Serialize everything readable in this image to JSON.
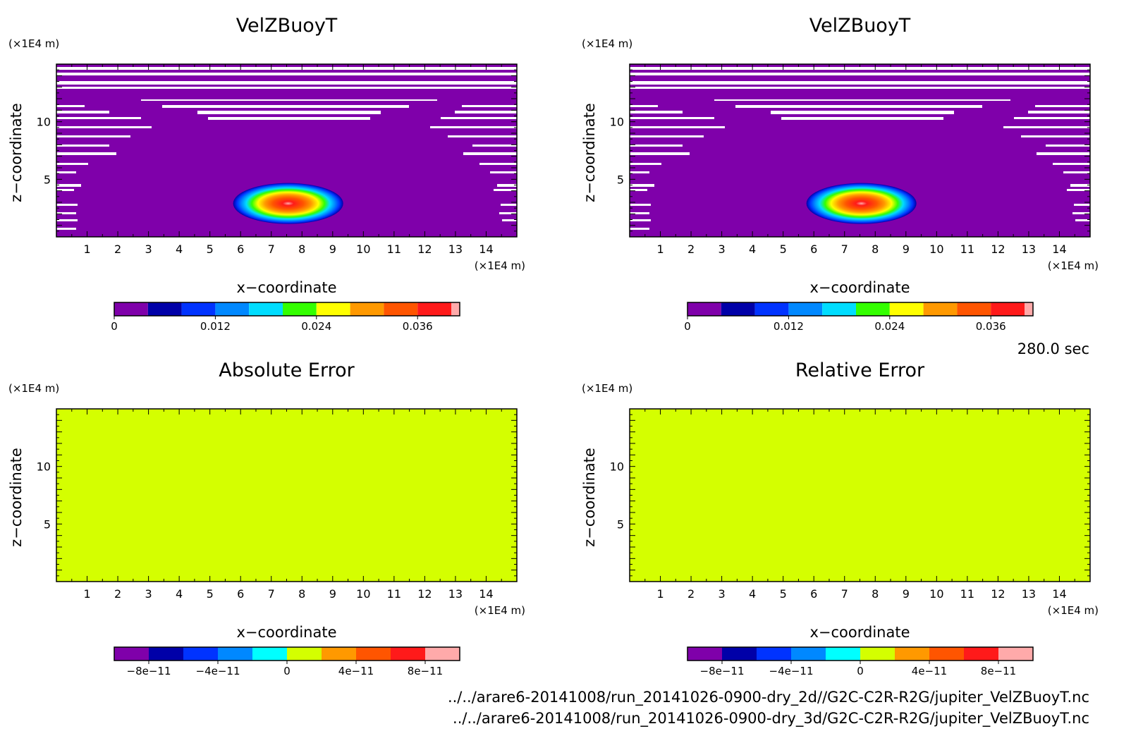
{
  "time_label": "280.0 sec",
  "file_paths": [
    "../../arare6-20141008/run_20141026-0900-dry_2d//G2C-C2R-R2G/jupiter_VelZBuoyT.nc",
    "../../arare6-20141008/run_20141026-0900-dry_3d/G2C-C2R-R2G/jupiter_VelZBuoyT.nc"
  ],
  "colors": {
    "background_field": "#7f00aa",
    "error_field": "#d4ff00",
    "gaps": "#ffffff"
  },
  "colormap": [
    "#7f00aa",
    "#0000a8",
    "#0033ff",
    "#0088ff",
    "#00ddff",
    "#33ff00",
    "#ffff00",
    "#ff9900",
    "#ff5500",
    "#ff1a1a",
    "#ffaaaa"
  ],
  "error_colormap": [
    "#7f00aa",
    "#0000a8",
    "#0033ff",
    "#0088ff",
    "#00ffff",
    "#d4ff00",
    "#ff9900",
    "#ff5500",
    "#ff1a1a",
    "#ffaaaa"
  ],
  "chart_data": [
    {
      "type": "heatmap",
      "title": "VelZBuoyT",
      "xlabel": "x−coordinate",
      "ylabel": "z−coordinate",
      "x_unit": "(×1E4 m)",
      "y_unit": "(×1E4 m)",
      "xlim": [
        0,
        15
      ],
      "ylim": [
        0,
        15
      ],
      "xticks": [
        1,
        2,
        3,
        4,
        5,
        6,
        7,
        8,
        9,
        10,
        11,
        12,
        13,
        14
      ],
      "yticks": [
        5,
        10
      ],
      "field": "positive anomaly centered near x=7.5, z=3",
      "colorbar": {
        "range": [
          0,
          0.04
        ],
        "ticks": [
          "0",
          "0.012",
          "0.024",
          "0.036"
        ]
      }
    },
    {
      "type": "heatmap",
      "title": "VelZBuoyT",
      "xlabel": "x−coordinate",
      "ylabel": "z−coordinate",
      "x_unit": "(×1E4 m)",
      "y_unit": "(×1E4 m)",
      "xlim": [
        0,
        15
      ],
      "ylim": [
        0,
        15
      ],
      "xticks": [
        1,
        2,
        3,
        4,
        5,
        6,
        7,
        8,
        9,
        10,
        11,
        12,
        13,
        14
      ],
      "yticks": [
        5,
        10
      ],
      "field": "positive anomaly centered near x=7.5, z=3",
      "colorbar": {
        "range": [
          0,
          0.04
        ],
        "ticks": [
          "0",
          "0.012",
          "0.024",
          "0.036"
        ]
      }
    },
    {
      "type": "heatmap",
      "title": "Absolute Error",
      "xlabel": "x−coordinate",
      "ylabel": "z−coordinate",
      "x_unit": "(×1E4 m)",
      "y_unit": "(×1E4 m)",
      "xlim": [
        0,
        15
      ],
      "ylim": [
        0,
        15
      ],
      "xticks": [
        1,
        2,
        3,
        4,
        5,
        6,
        7,
        8,
        9,
        10,
        11,
        12,
        13,
        14
      ],
      "yticks": [
        5,
        10
      ],
      "field": "uniform 0",
      "colorbar": {
        "range": [
          -1e-10,
          1e-10
        ],
        "ticks": [
          "−8e−11",
          "−4e−11",
          "0",
          "4e−11",
          "8e−11"
        ]
      }
    },
    {
      "type": "heatmap",
      "title": "Relative Error",
      "xlabel": "x−coordinate",
      "ylabel": "z−coordinate",
      "x_unit": "(×1E4 m)",
      "y_unit": "(×1E4 m)",
      "xlim": [
        0,
        15
      ],
      "ylim": [
        0,
        15
      ],
      "xticks": [
        1,
        2,
        3,
        4,
        5,
        6,
        7,
        8,
        9,
        10,
        11,
        12,
        13,
        14
      ],
      "yticks": [
        5,
        10
      ],
      "field": "uniform 0",
      "colorbar": {
        "range": [
          -1e-10,
          1e-10
        ],
        "ticks": [
          "−8e−11",
          "−4e−11",
          "0",
          "4e−11",
          "8e−11"
        ]
      }
    }
  ]
}
